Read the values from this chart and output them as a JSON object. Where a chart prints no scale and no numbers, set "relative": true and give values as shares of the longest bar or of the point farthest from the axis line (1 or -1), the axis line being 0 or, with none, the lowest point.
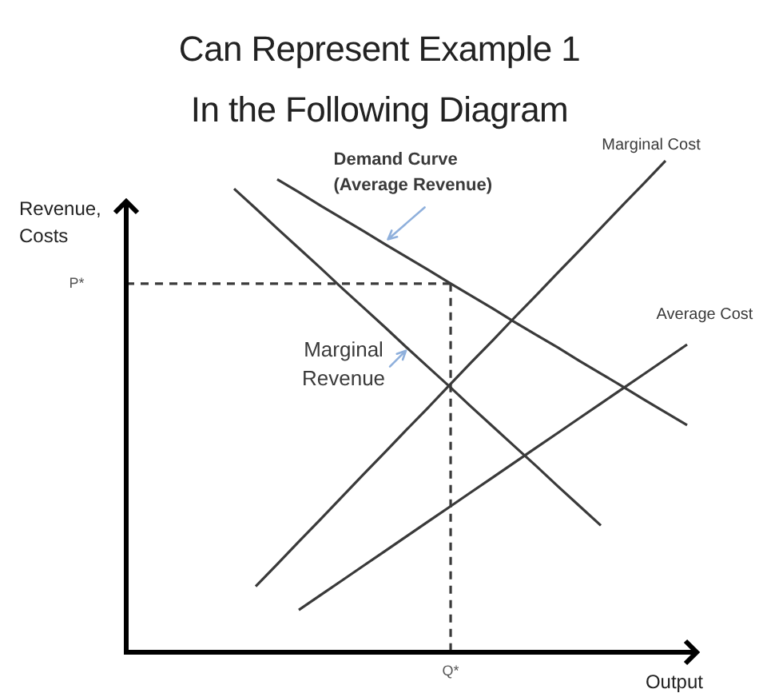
{
  "chart_data": {
    "type": "line",
    "title": "Can Represent Example 1\nIn the Following Diagram",
    "xlabel": "Output",
    "ylabel": "Revenue, Costs",
    "relative": true,
    "marker": "none",
    "categories": [
      null,
      null,
      null,
      null,
      null,
      null,
      null,
      null,
      null,
      null,
      null,
      null,
      null,
      null,
      null,
      null,
      null,
      null,
      null,
      null,
      null,
      null,
      null,
      null,
      null,
      null,
      null
    ],
    "series": [
      {
        "name": "Demand Curve (Average Revenue)",
        "color": "#3a3a3a",
        "values": [
          null,
          null,
          null,
          null,
          null,
          null,
          null,
          0.962,
          0.936,
          0.909,
          0.883,
          0.857,
          0.83,
          0.804,
          0.778,
          0.751,
          0.725,
          0.699,
          0.672,
          0.646,
          0.62,
          0.593,
          0.567,
          0.541,
          0.514,
          0.488,
          0.462
        ]
      },
      {
        "name": "Marginal Revenue",
        "color": "#3a3a3a",
        "values": [
          null,
          null,
          null,
          null,
          null,
          0.943,
          0.903,
          0.862,
          0.822,
          0.782,
          0.741,
          0.701,
          0.661,
          0.62,
          0.58,
          0.54,
          0.499,
          0.459,
          0.419,
          0.379,
          0.338,
          0.298,
          0.258,
          null,
          null,
          null,
          null
        ]
      },
      {
        "name": "Marginal Cost",
        "color": "#3a3a3a",
        "values": [
          null,
          null,
          null,
          null,
          null,
          null,
          0.134,
          0.179,
          0.225,
          0.27,
          0.316,
          0.362,
          0.407,
          0.453,
          0.498,
          0.544,
          0.59,
          0.635,
          0.681,
          0.726,
          0.772,
          0.817,
          0.863,
          0.909,
          0.954,
          1,
          null
        ]
      },
      {
        "name": "Average Cost",
        "color": "#3a3a3a",
        "values": [
          null,
          null,
          null,
          null,
          null,
          null,
          null,
          null,
          0.086,
          0.116,
          0.146,
          0.176,
          0.206,
          0.236,
          0.266,
          0.296,
          0.326,
          0.356,
          0.386,
          0.416,
          0.446,
          0.476,
          0.506,
          0.536,
          0.566,
          0.596,
          0.626
        ]
      }
    ],
    "ref_lines": [
      {
        "axis": "y",
        "value": 0.75,
        "label": "P*",
        "line_style": "dashed",
        "color": "#3a3a3a"
      }
    ],
    "annotations": [
      "Q*"
    ]
  }
}
